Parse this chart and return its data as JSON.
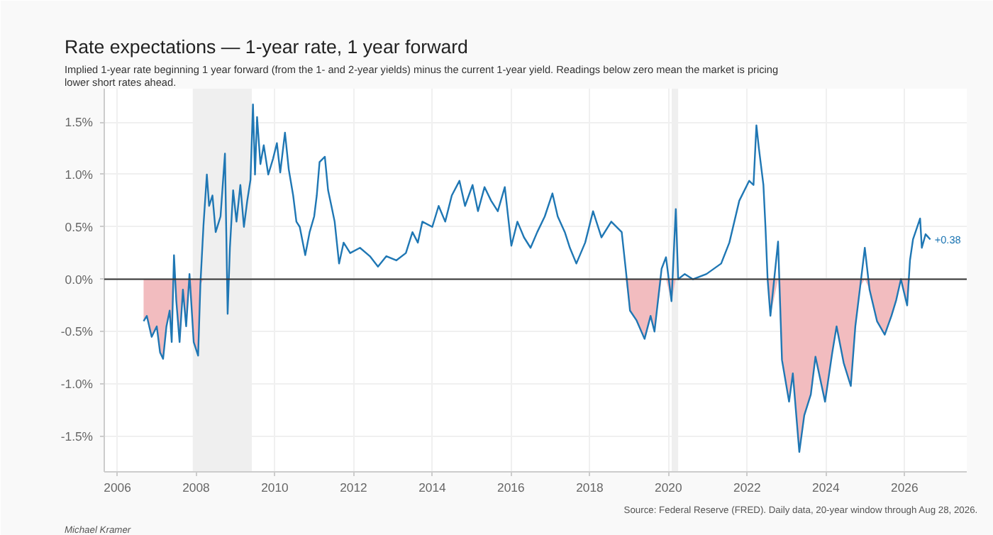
{
  "chart_data": {
    "type": "line",
    "title": "Rate expectations — 1-year rate, 1 year forward",
    "subtitle": "Implied 1-year rate beginning 1 year forward (from the 1- and 2-year yields) minus the current 1-year yield. Readings below zero mean the market is pricing lower short rates ahead.",
    "annotations": [
      {
        "text": "+0.38",
        "x": "2026-08-28",
        "y": 0.38
      },
      "Michael Kramer",
      "Source: Federal Reserve (FRED). Daily data, 20-year window through Aug 28, 2026."
    ],
    "x": [
      "2006-09-01",
      "2006-10-01",
      "2006-11-15",
      "2007-01-01",
      "2007-02-01",
      "2007-03-01",
      "2007-04-01",
      "2007-05-01",
      "2007-05-20",
      "2007-06-10",
      "2007-07-01",
      "2007-08-01",
      "2007-09-01",
      "2007-10-01",
      "2007-11-01",
      "2007-12-10",
      "2008-01-20",
      "2008-02-10",
      "2008-03-10",
      "2008-04-10",
      "2008-05-01",
      "2008-06-01",
      "2008-07-01",
      "2008-08-15",
      "2008-09-25",
      "2008-10-20",
      "2008-11-10",
      "2008-12-10",
      "2009-01-10",
      "2009-02-15",
      "2009-03-20",
      "2009-04-20",
      "2009-05-20",
      "2009-06-12",
      "2009-07-01",
      "2009-07-20",
      "2009-08-20",
      "2009-09-20",
      "2009-11-01",
      "2009-12-15",
      "2010-01-20",
      "2010-02-20",
      "2010-04-05",
      "2010-05-10",
      "2010-06-20",
      "2010-07-20",
      "2010-08-20",
      "2010-10-10",
      "2010-11-20",
      "2011-01-01",
      "2011-01-25",
      "2011-02-20",
      "2011-04-10",
      "2011-05-10",
      "2011-06-10",
      "2011-07-10",
      "2011-08-20",
      "2011-10-01",
      "2011-12-01",
      "2012-03-01",
      "2012-06-01",
      "2012-08-15",
      "2012-11-01",
      "2013-02-01",
      "2013-05-01",
      "2013-07-01",
      "2013-08-20",
      "2013-10-01",
      "2014-01-01",
      "2014-03-01",
      "2014-05-01",
      "2014-07-01",
      "2014-09-10",
      "2014-11-01",
      "2015-01-10",
      "2015-03-01",
      "2015-05-01",
      "2015-07-01",
      "2015-09-01",
      "2015-11-05",
      "2016-01-05",
      "2016-03-01",
      "2016-05-01",
      "2016-07-01",
      "2016-09-01",
      "2016-11-10",
      "2017-01-20",
      "2017-03-10",
      "2017-05-15",
      "2017-07-01",
      "2017-08-30",
      "2017-11-20",
      "2018-02-01",
      "2018-04-20",
      "2018-07-20",
      "2018-10-25",
      "2018-12-01",
      "2019-01-10",
      "2019-03-10",
      "2019-05-25",
      "2019-07-20",
      "2019-08-25",
      "2019-10-30",
      "2019-12-10",
      "2020-01-30",
      "2020-03-10",
      "2020-04-01",
      "2020-06-01",
      "2020-08-15",
      "2020-12-20",
      "2021-05-05",
      "2021-07-20",
      "2021-10-20",
      "2022-01-20",
      "2022-03-01",
      "2022-03-28",
      "2022-04-20",
      "2022-06-01",
      "2022-06-20",
      "2022-07-10",
      "2022-08-05",
      "2022-10-15",
      "2022-11-20",
      "2023-01-25",
      "2023-03-01",
      "2023-04-30",
      "2023-06-15",
      "2023-08-15",
      "2023-09-27",
      "2023-12-25",
      "2024-03-01",
      "2024-04-10",
      "2024-06-15",
      "2024-08-20",
      "2024-10-01",
      "2024-11-15",
      "2024-12-28",
      "2025-02-10",
      "2025-04-20",
      "2025-07-01",
      "2025-09-01",
      "2025-10-15",
      "2025-11-28",
      "2026-01-25",
      "2026-02-20",
      "2026-03-20",
      "2026-05-25",
      "2026-06-10",
      "2026-07-15",
      "2026-08-28"
    ],
    "series": [
      {
        "type": "area",
        "color": "#f2bcbf",
        "values": [
          -0.4,
          -0.35,
          -0.55,
          -0.45,
          -0.7,
          -0.76,
          -0.45,
          -0.3,
          -0.6,
          0,
          -0.2,
          -0.6,
          -0.1,
          -0.45,
          0,
          -0.6,
          -0.73,
          -0.05,
          0,
          0,
          0,
          0,
          0,
          0,
          0,
          0,
          0,
          0,
          0,
          0,
          0,
          0,
          0,
          0,
          0,
          0,
          0,
          0,
          0,
          0,
          0,
          0,
          0,
          0,
          0,
          0,
          0,
          0,
          0,
          0,
          0,
          0,
          0,
          0,
          0,
          0,
          0,
          0,
          0,
          0,
          0,
          0,
          0,
          0,
          0,
          0,
          0,
          0,
          0,
          0,
          0,
          0,
          0,
          0,
          0,
          0,
          0,
          0,
          0,
          0,
          0,
          0,
          0,
          0,
          0,
          0,
          0,
          0,
          0,
          0,
          0,
          0,
          0,
          0,
          0,
          0,
          0,
          -0.3,
          -0.39,
          -0.57,
          -0.35,
          -0.5,
          0,
          0,
          -0.21,
          0,
          0,
          0,
          0,
          0,
          0,
          0,
          0,
          0,
          0,
          0,
          0,
          0,
          0,
          0,
          -0.35,
          0,
          -0.77,
          -1.17,
          -0.9,
          -1.65,
          -1.3,
          -1.1,
          -0.74,
          -1.17,
          -0.7,
          -0.45,
          -0.8,
          -1.02,
          -0.45,
          -0.07,
          0,
          -0.1,
          -0.4,
          -0.53,
          -0.35,
          -0.2,
          0,
          -0.25,
          0,
          0,
          0,
          0,
          0,
          0
        ]
      },
      {
        "type": "line",
        "color": "#1f77b4",
        "values": [
          -0.4,
          -0.35,
          -0.55,
          -0.45,
          -0.7,
          -0.76,
          -0.45,
          -0.3,
          -0.6,
          0.23,
          -0.2,
          -0.6,
          -0.1,
          -0.45,
          0.05,
          -0.6,
          -0.73,
          -0.05,
          0.52,
          1.0,
          0.7,
          0.8,
          0.45,
          0.6,
          1.2,
          -0.33,
          0.3,
          0.85,
          0.55,
          0.9,
          0.5,
          0.75,
          0.95,
          1.67,
          1.0,
          1.55,
          1.1,
          1.28,
          1.0,
          1.15,
          1.3,
          1.02,
          1.4,
          1.05,
          0.8,
          0.55,
          0.5,
          0.23,
          0.45,
          0.6,
          0.8,
          1.12,
          1.17,
          0.85,
          0.7,
          0.55,
          0.15,
          0.35,
          0.25,
          0.3,
          0.22,
          0.12,
          0.22,
          0.18,
          0.25,
          0.45,
          0.35,
          0.55,
          0.5,
          0.7,
          0.55,
          0.8,
          0.94,
          0.7,
          0.9,
          0.65,
          0.88,
          0.75,
          0.65,
          0.88,
          0.32,
          0.55,
          0.4,
          0.3,
          0.45,
          0.6,
          0.82,
          0.6,
          0.45,
          0.3,
          0.15,
          0.35,
          0.65,
          0.4,
          0.55,
          0.45,
          0.1,
          -0.3,
          -0.39,
          -0.57,
          -0.35,
          -0.5,
          0.1,
          0.21,
          -0.21,
          0.67,
          0.0,
          0.05,
          0.0,
          0.05,
          0.15,
          0.35,
          0.75,
          0.94,
          0.9,
          1.47,
          1.25,
          0.9,
          0.5,
          0.0,
          -0.35,
          0.36,
          -0.77,
          -1.17,
          -0.9,
          -1.65,
          -1.3,
          -1.1,
          -0.74,
          -1.17,
          -0.7,
          -0.45,
          -0.8,
          -1.02,
          -0.45,
          -0.07,
          0.3,
          -0.1,
          -0.4,
          -0.53,
          -0.35,
          -0.2,
          0.0,
          -0.25,
          0.18,
          0.38,
          0.58,
          0.3,
          0.43,
          0.38
        ]
      }
    ],
    "xlim": [
      "2005-09",
      "2027-08"
    ],
    "xticks": [
      "2006",
      "2008",
      "2010",
      "2012",
      "2014",
      "2016",
      "2018",
      "2020",
      "2022",
      "2024",
      "2026"
    ],
    "ylim": [
      -1.84,
      1.82
    ],
    "yticks": [
      {
        "value": -1.5,
        "label": "-1.5%"
      },
      {
        "value": -1.0,
        "label": "-1.0%"
      },
      {
        "value": -0.5,
        "label": "-0.5%"
      },
      {
        "value": 0.0,
        "label": "0.0%"
      },
      {
        "value": 0.5,
        "label": "0.5%"
      },
      {
        "value": 1.0,
        "label": "1.0%"
      },
      {
        "value": 1.5,
        "label": "1.5%"
      }
    ],
    "ref_lines": [
      {
        "axis": "y",
        "value": 0,
        "color": "#333333"
      }
    ],
    "bands": [
      {
        "axis": "x",
        "from": "2007-12",
        "to": "2009-06",
        "color": "#efefef"
      },
      {
        "axis": "x",
        "from": "2020-02",
        "to": "2020-04",
        "color": "#efefef"
      }
    ],
    "grid": true
  }
}
